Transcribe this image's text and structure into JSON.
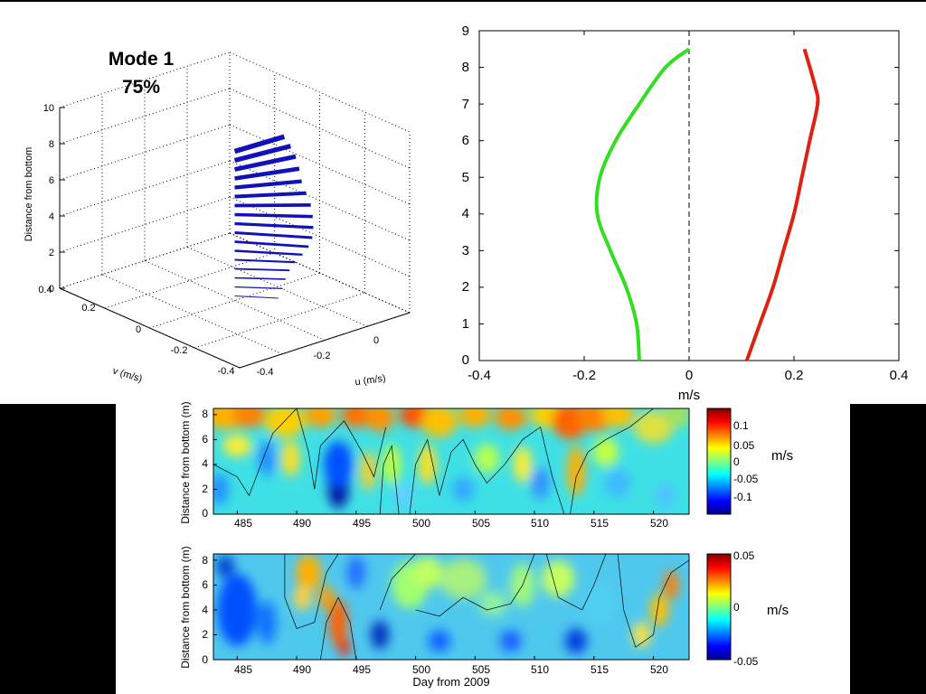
{
  "mode_label": {
    "title": "Mode 1",
    "percent": "75%"
  },
  "colors": {
    "green": "#33dd22",
    "red": "#dd2211",
    "blue": "#1111bb",
    "black": "#000000"
  },
  "chart_data": [
    {
      "type": "line",
      "name": "3d-mode-vectors",
      "zlabel": "Distance from bottom",
      "xlabel": "u (m/s)",
      "ylabel": "v (m/s)",
      "zlim": [
        0,
        10
      ],
      "xlim": [
        -0.4,
        0.4
      ],
      "ylim": [
        -0.4,
        0.4
      ],
      "z_ticks": [
        "0",
        "2",
        "4",
        "6",
        "8",
        "10"
      ],
      "u_ticks": [
        "-0.4",
        "-0.2",
        "0"
      ],
      "v_ticks": [
        "0.4",
        "0.2",
        "0",
        "-0.2",
        "-0.4"
      ],
      "depths": [
        0.25,
        0.75,
        1.25,
        1.75,
        2.25,
        2.75,
        3.25,
        3.75,
        4.25,
        4.75,
        5.25,
        5.75,
        6.25,
        6.75,
        7.25,
        7.75,
        8.25
      ],
      "u": [
        0.105,
        0.12,
        0.13,
        0.14,
        0.15,
        0.16,
        0.17,
        0.18,
        0.19,
        0.2,
        0.21,
        0.215,
        0.22,
        0.235,
        0.245,
        0.24,
        0.225
      ],
      "v": [
        -0.095,
        -0.1,
        -0.103,
        -0.112,
        -0.128,
        -0.15,
        -0.168,
        -0.175,
        -0.17,
        -0.158,
        -0.14,
        -0.115,
        -0.09,
        -0.065,
        -0.04,
        -0.022,
        -0.008
      ]
    },
    {
      "type": "line",
      "name": "mode-profile",
      "xlabel": "m/s",
      "ylabel": "",
      "xlim": [
        -0.4,
        0.4
      ],
      "ylim": [
        0,
        9
      ],
      "x_ticks": [
        "-0.4",
        "-0.2",
        "0",
        "0.2",
        "0.4"
      ],
      "y_ticks": [
        "0",
        "1",
        "2",
        "3",
        "4",
        "5",
        "6",
        "7",
        "8",
        "9"
      ],
      "series": [
        {
          "color": "#33dd22",
          "x": [
            -0.095,
            -0.1,
            -0.12,
            -0.15,
            -0.175,
            -0.17,
            -0.14,
            -0.095,
            -0.045,
            0.0
          ],
          "y": [
            0,
            1,
            2,
            3,
            4,
            5,
            6,
            7,
            8,
            8.5
          ]
        },
        {
          "color": "#dd2211",
          "x": [
            0.11,
            0.135,
            0.16,
            0.18,
            0.2,
            0.215,
            0.23,
            0.245,
            0.24,
            0.22
          ],
          "y": [
            0,
            1,
            2,
            3,
            4,
            5,
            6,
            7,
            7.5,
            8.5
          ]
        }
      ],
      "reference_line": {
        "x": 0,
        "style": "dashed"
      }
    },
    {
      "type": "heatmap",
      "name": "u-contour",
      "ylabel": "Distance from bottom (m)",
      "xlim": [
        483,
        523
      ],
      "ylim": [
        0,
        8.5
      ],
      "x_ticks": [
        "485",
        "490",
        "495",
        "500",
        "505",
        "510",
        "515",
        "520"
      ],
      "y_ticks": [
        "0",
        "2",
        "4",
        "6",
        "8"
      ],
      "colorbar": {
        "range": [
          -0.13,
          0.13
        ],
        "ticks": [
          "0.1",
          "0.05",
          "0",
          "-0.05",
          "-0.1"
        ],
        "unit": "m/s"
      }
    },
    {
      "type": "heatmap",
      "name": "v-contour",
      "ylabel": "Distance from bottom (m)",
      "xlabel": "Day from 2009",
      "xlim": [
        483,
        523
      ],
      "ylim": [
        0,
        8.5
      ],
      "x_ticks": [
        "485",
        "490",
        "495",
        "500",
        "505",
        "510",
        "515",
        "520"
      ],
      "y_ticks": [
        "0",
        "2",
        "4",
        "6",
        "8"
      ],
      "colorbar": {
        "range": [
          -0.05,
          0.05
        ],
        "ticks": [
          "0.05",
          "0",
          "-0.05"
        ],
        "unit": "m/s"
      }
    }
  ]
}
